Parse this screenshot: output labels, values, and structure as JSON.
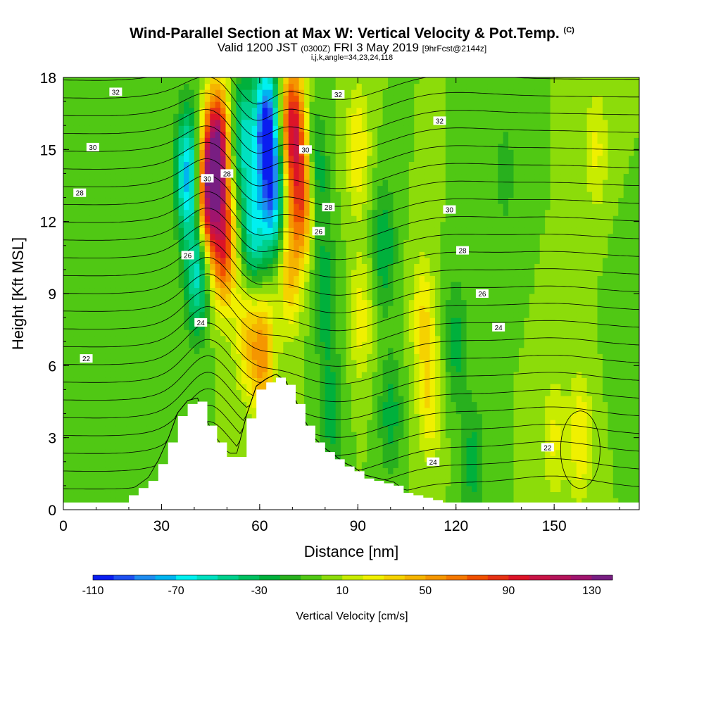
{
  "header": {
    "title": "Wind-Parallel Section at Max W: Vertical Velocity & Pot.Temp.",
    "title_tag": "(C)",
    "valid_prefix": "Valid 1200 JST",
    "valid_utc": "(0300Z)",
    "valid_date": "FRI 3 May 2019",
    "forecast_tag": "[9hrFcst@2144z]",
    "grid_info": "i,j,k,angle=34,23,24,118"
  },
  "chart_data": {
    "type": "heatmap",
    "title": "Wind-Parallel Section at Max W: Vertical Velocity & Pot.Temp.",
    "xlabel": "Distance [nm]",
    "ylabel": "Height [Kft MSL]",
    "xlim": [
      0,
      176
    ],
    "ylim": [
      0,
      18
    ],
    "x_ticks": [
      0,
      30,
      60,
      90,
      120,
      150
    ],
    "y_ticks": [
      0,
      3,
      6,
      9,
      12,
      15,
      18
    ],
    "colorbar": {
      "label": "Vertical Velocity [cm/s]",
      "tick_values": [
        -110,
        -70,
        -30,
        10,
        50,
        90,
        130
      ],
      "bins": [
        -110,
        -100,
        -90,
        -80,
        -70,
        -60,
        -50,
        -40,
        -30,
        -20,
        -10,
        0,
        10,
        20,
        30,
        40,
        50,
        60,
        70,
        80,
        90,
        100,
        110,
        120,
        130,
        140
      ],
      "colors": [
        "#0a1ef0",
        "#1e50f0",
        "#1e8cf0",
        "#00b4f0",
        "#00f0f0",
        "#00e0c0",
        "#00d08c",
        "#00c060",
        "#00b03c",
        "#28b01e",
        "#50c814",
        "#8cdc0a",
        "#c8ec00",
        "#f0f000",
        "#f5d200",
        "#f5b400",
        "#f59600",
        "#f57800",
        "#f05000",
        "#e63214",
        "#dc1428",
        "#c81446",
        "#b4145a",
        "#a0146e",
        "#781e82"
      ]
    },
    "velocity_cores": [
      {
        "x": 38,
        "z": 14,
        "w": -75
      },
      {
        "x": 41,
        "z": 10,
        "w": -60
      },
      {
        "x": 47,
        "z": 15,
        "w": 120
      },
      {
        "x": 44,
        "z": 13,
        "w": 95
      },
      {
        "x": 49,
        "z": 11,
        "w": 80
      },
      {
        "x": 55,
        "z": 15.5,
        "w": -50
      },
      {
        "x": 62,
        "z": 16,
        "w": -100
      },
      {
        "x": 64,
        "z": 13,
        "w": -75
      },
      {
        "x": 58,
        "z": 11.5,
        "w": -55
      },
      {
        "x": 70,
        "z": 16,
        "w": 95
      },
      {
        "x": 73,
        "z": 13,
        "w": 75
      },
      {
        "x": 69,
        "z": 10,
        "w": 40
      },
      {
        "x": 61,
        "z": 6.5,
        "w": 55
      },
      {
        "x": 56,
        "z": 7.5,
        "w": 35
      },
      {
        "x": 77,
        "z": 14,
        "w": -35
      },
      {
        "x": 80,
        "z": 9,
        "w": -30
      },
      {
        "x": 82,
        "z": 4,
        "w": -25
      },
      {
        "x": 90,
        "z": 15,
        "w": 30
      },
      {
        "x": 91,
        "z": 8,
        "w": 25
      },
      {
        "x": 98,
        "z": 11,
        "w": -30
      },
      {
        "x": 100,
        "z": 4,
        "w": -25
      },
      {
        "x": 110,
        "z": 8,
        "w": 30
      },
      {
        "x": 112,
        "z": 4.5,
        "w": 28
      },
      {
        "x": 120,
        "z": 7,
        "w": -25
      },
      {
        "x": 125,
        "z": 2,
        "w": -25
      },
      {
        "x": 135,
        "z": 14,
        "w": -15
      },
      {
        "x": 150,
        "z": 3,
        "w": 22
      },
      {
        "x": 158,
        "z": 3,
        "w": 30
      },
      {
        "x": 163,
        "z": 15,
        "w": 22
      },
      {
        "x": 18,
        "z": 14,
        "w": -5
      },
      {
        "x": 10,
        "z": 6,
        "w": 0
      },
      {
        "x": 170,
        "z": 8,
        "w": -8
      }
    ],
    "terrain_profile": {
      "x": [
        0,
        20,
        23,
        26,
        29,
        32,
        35,
        38,
        41,
        44,
        47,
        50,
        53,
        56,
        59,
        62,
        65,
        68,
        71,
        74,
        77,
        80,
        83,
        86,
        89,
        92,
        95,
        98,
        101,
        104,
        107,
        110,
        113,
        116,
        176
      ],
      "height": [
        0.3,
        0.6,
        0.9,
        1.2,
        1.9,
        2.8,
        3.9,
        4.4,
        4.5,
        3.5,
        2.8,
        2.2,
        2.2,
        3.8,
        5.0,
        5.3,
        5.5,
        5.2,
        4.4,
        3.5,
        2.8,
        2.4,
        2.1,
        1.8,
        1.6,
        1.3,
        1.2,
        1.1,
        1.0,
        0.7,
        0.6,
        0.5,
        0.4,
        0.3,
        0.3
      ]
    },
    "isentropes": {
      "levels": [
        22,
        24,
        26,
        28,
        30,
        32
      ],
      "labels": [
        {
          "text": "32",
          "x": 16,
          "z": 17.4
        },
        {
          "text": "30",
          "x": 9,
          "z": 15.1
        },
        {
          "text": "28",
          "x": 5,
          "z": 13.2
        },
        {
          "text": "22",
          "x": 7,
          "z": 6.3
        },
        {
          "text": "30",
          "x": 44,
          "z": 13.8
        },
        {
          "text": "28",
          "x": 50,
          "z": 14.0
        },
        {
          "text": "26",
          "x": 38,
          "z": 10.6
        },
        {
          "text": "24",
          "x": 42,
          "z": 7.8
        },
        {
          "text": "32",
          "x": 84,
          "z": 17.3
        },
        {
          "text": "30",
          "x": 74,
          "z": 15.0
        },
        {
          "text": "28",
          "x": 81,
          "z": 12.6
        },
        {
          "text": "26",
          "x": 78,
          "z": 11.6
        },
        {
          "text": "32",
          "x": 115,
          "z": 16.2
        },
        {
          "text": "30",
          "x": 118,
          "z": 12.5
        },
        {
          "text": "28",
          "x": 122,
          "z": 10.8
        },
        {
          "text": "26",
          "x": 128,
          "z": 9.0
        },
        {
          "text": "24",
          "x": 133,
          "z": 7.6
        },
        {
          "text": "24",
          "x": 113,
          "z": 2.0
        },
        {
          "text": "22",
          "x": 148,
          "z": 2.6
        }
      ]
    },
    "grid": false
  }
}
